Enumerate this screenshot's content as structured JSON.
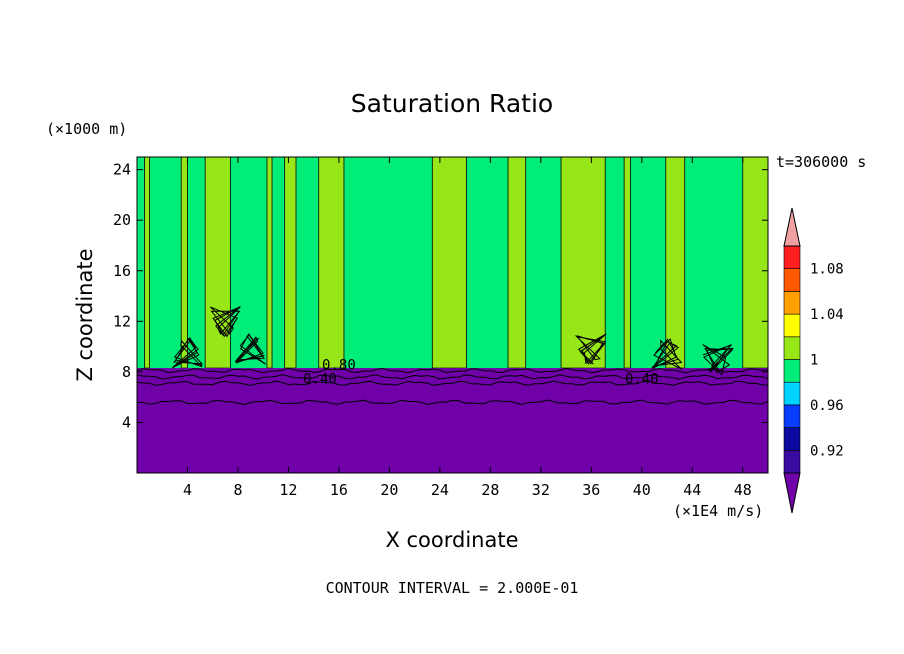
{
  "chart_data": {
    "type": "heatmap",
    "title": "Saturation Ratio",
    "xlabel": "X coordinate",
    "ylabel": "Z coordinate",
    "x_unit": "(×1E4 m/s)",
    "y_unit": "(×1000 m)",
    "time_label": "t=306000 s",
    "footer": "CONTOUR INTERVAL = 2.000E-01",
    "xlim": [
      0,
      50
    ],
    "ylim": [
      0,
      25
    ],
    "x_ticks": [
      4,
      8,
      12,
      16,
      20,
      24,
      28,
      32,
      36,
      40,
      44,
      48
    ],
    "y_ticks": [
      4,
      8,
      12,
      16,
      20,
      24
    ],
    "contour_labels": [
      {
        "text": "0.80",
        "x": 16,
        "y": 8.2
      },
      {
        "text": "0.40",
        "x": 14.5,
        "y": 7.1
      },
      {
        "text": "0.40",
        "x": 40,
        "y": 7.1
      }
    ],
    "colorbar": {
      "levels": [
        0.92,
        0.94,
        0.96,
        0.98,
        1.0,
        1.02,
        1.04,
        1.06,
        1.08,
        1.1
      ],
      "tick_labels": [
        "0.92",
        "0.96",
        "1",
        "1.04",
        "1.08"
      ],
      "tick_values": [
        0.92,
        0.96,
        1.0,
        1.04,
        1.08
      ],
      "colors": [
        "#3b0aa0",
        "#0a0aa0",
        "#0a3cff",
        "#00d2ff",
        "#00ee78",
        "#96e618",
        "#ffff00",
        "#ffa000",
        "#ff5a00",
        "#ff1e1e"
      ],
      "under_color": "#7000a8",
      "over_color": "#f0a0a0"
    },
    "lower_layer_color": "#7000a8",
    "upper_background_color": "#00ee78",
    "green_band_color": "#96e618",
    "green_bands": [
      [
        0.6,
        1.0
      ],
      [
        3.5,
        4.0
      ],
      [
        5.4,
        7.4
      ],
      [
        10.3,
        10.7
      ],
      [
        11.7,
        12.6
      ],
      [
        14.4,
        16.4
      ],
      [
        23.4,
        26.1
      ],
      [
        29.4,
        30.8
      ],
      [
        33.6,
        37.1
      ],
      [
        38.6,
        39.1
      ],
      [
        41.9,
        43.4
      ],
      [
        48.0,
        50.0
      ]
    ],
    "boundary_height": 8.3
  }
}
